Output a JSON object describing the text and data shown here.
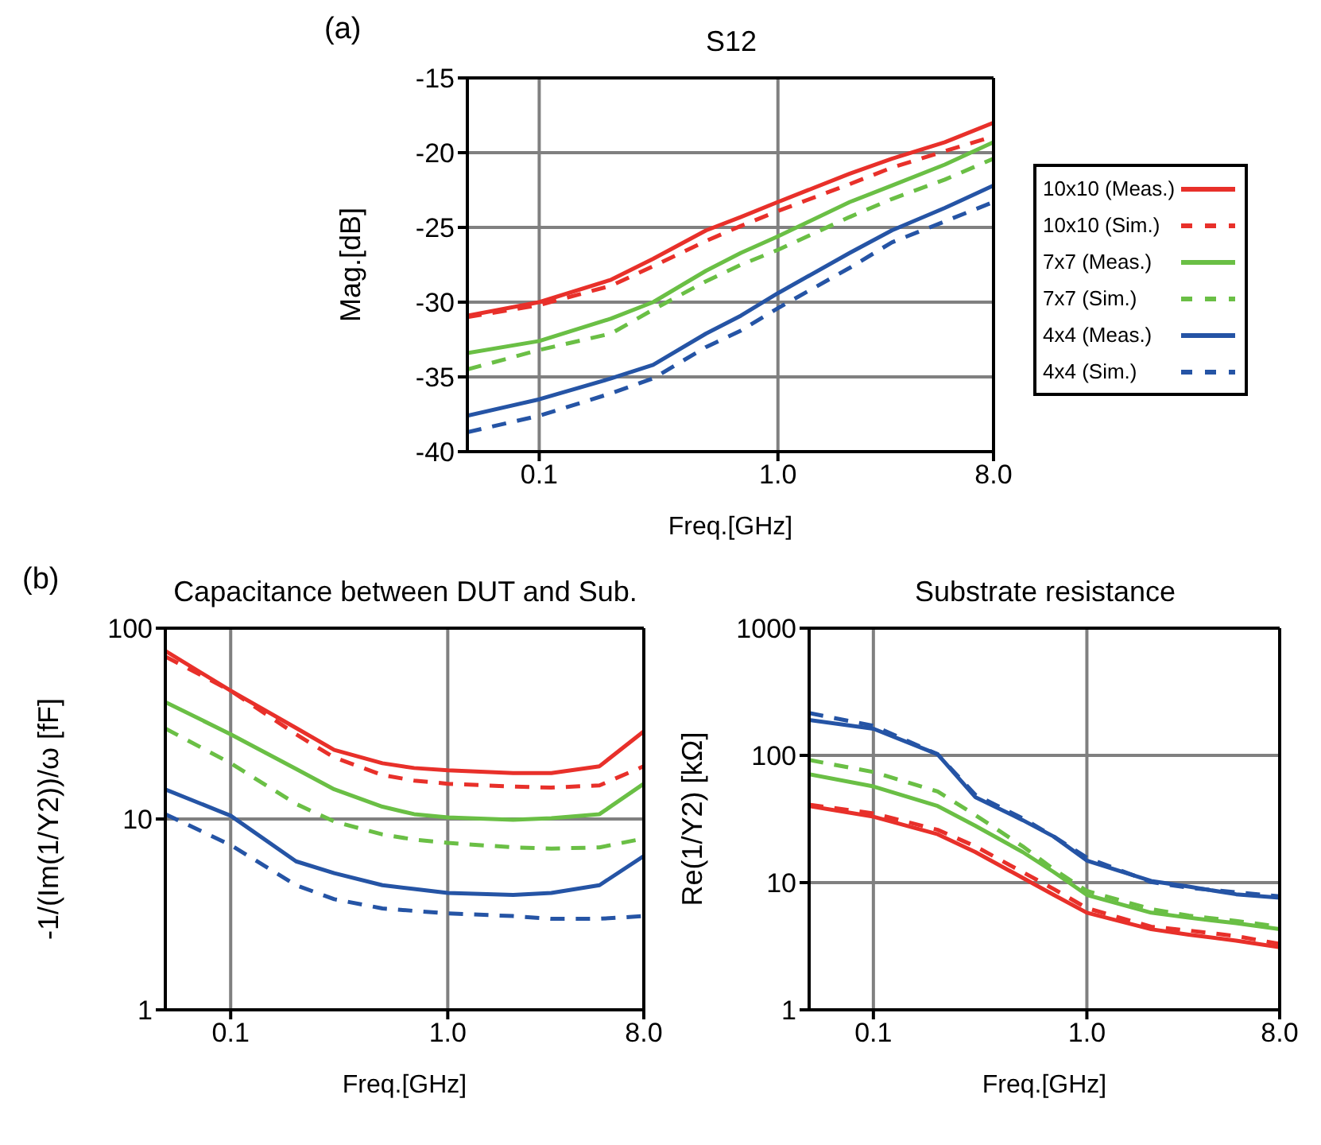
{
  "chart_data": [
    {
      "type": "line",
      "title": "S12",
      "xlabel": "Freq.[GHz]",
      "ylabel": "Mag.[dB]",
      "annotations": [
        "(a)"
      ],
      "log": "x",
      "grid": true,
      "legend": "right",
      "xlim": [
        0.05,
        8
      ],
      "xticks": [
        {
          "value": 0.1,
          "label": "0.1"
        },
        {
          "value": 1,
          "label": "1.0"
        },
        {
          "value": 8,
          "label": "8.0"
        }
      ],
      "ylim": [
        -40,
        -15
      ],
      "yticks": [
        -40,
        -35,
        -30,
        -25,
        -20,
        -15
      ],
      "x": [
        0.05,
        0.1,
        0.2,
        0.3,
        0.5,
        0.7,
        1,
        2,
        3,
        5,
        8
      ],
      "series": [
        {
          "name": "10x10 (Meas.)",
          "color": "#e8302a",
          "line_style": "solid",
          "values": [
            -30.9,
            -30.0,
            -28.5,
            -27.1,
            -25.2,
            -24.3,
            -23.3,
            -21.4,
            -20.4,
            -19.3,
            -18.0
          ]
        },
        {
          "name": "10x10 (Sim.)",
          "color": "#e8302a",
          "line_style": "dashed",
          "values": [
            -31.0,
            -30.2,
            -28.9,
            -27.6,
            -25.9,
            -24.9,
            -23.9,
            -22.1,
            -21.0,
            -19.9,
            -18.9
          ]
        },
        {
          "name": "7x7 (Meas.)",
          "color": "#6abf45",
          "line_style": "solid",
          "values": [
            -33.4,
            -32.6,
            -31.1,
            -30.0,
            -27.9,
            -26.7,
            -25.6,
            -23.3,
            -22.2,
            -20.8,
            -19.3
          ]
        },
        {
          "name": "7x7 (Sim.)",
          "color": "#6abf45",
          "line_style": "dashed",
          "values": [
            -34.5,
            -33.2,
            -32.1,
            -30.5,
            -28.6,
            -27.5,
            -26.5,
            -24.3,
            -23.1,
            -21.8,
            -20.4
          ]
        },
        {
          "name": "4x4 (Meas.)",
          "color": "#2554a5",
          "line_style": "solid",
          "values": [
            -37.6,
            -36.5,
            -35.1,
            -34.2,
            -32.1,
            -30.9,
            -29.4,
            -26.7,
            -25.2,
            -23.7,
            -22.2
          ]
        },
        {
          "name": "4x4 (Sim.)",
          "color": "#2554a5",
          "line_style": "dashed",
          "values": [
            -38.7,
            -37.6,
            -36.1,
            -35.1,
            -33.0,
            -31.9,
            -30.4,
            -27.7,
            -26.0,
            -24.6,
            -23.3
          ]
        }
      ]
    },
    {
      "type": "line",
      "title": "Capacitance between DUT and Sub.",
      "xlabel": "Freq.[GHz]",
      "ylabel": "-1/(Im(1/Y2))/ω [fF]",
      "annotations": [
        "(b)"
      ],
      "log": "xy",
      "grid": true,
      "xlim": [
        0.05,
        8
      ],
      "xticks": [
        {
          "value": 0.1,
          "label": "0.1"
        },
        {
          "value": 1,
          "label": "1.0"
        },
        {
          "value": 8,
          "label": "8.0"
        }
      ],
      "ylim": [
        1,
        100
      ],
      "yticks": [
        1,
        10,
        100
      ],
      "x": [
        0.05,
        0.1,
        0.2,
        0.3,
        0.5,
        0.7,
        1,
        2,
        3,
        5,
        8
      ],
      "series": [
        {
          "color": "#e8302a",
          "line_style": "solid",
          "values": [
            76,
            47,
            30,
            23,
            19.6,
            18.5,
            18,
            17.4,
            17.4,
            18.9,
            28.8
          ]
        },
        {
          "color": "#e8302a",
          "line_style": "dashed",
          "values": [
            71,
            47,
            27.8,
            21,
            17,
            15.9,
            15.3,
            14.8,
            14.6,
            15,
            18.9
          ]
        },
        {
          "color": "#6abf45",
          "line_style": "solid",
          "values": [
            41,
            27.8,
            18.3,
            14.3,
            11.6,
            10.6,
            10.2,
            9.9,
            10.1,
            10.6,
            15.3
          ]
        },
        {
          "color": "#6abf45",
          "line_style": "dashed",
          "values": [
            29.8,
            19.6,
            12,
            9.7,
            8.3,
            7.8,
            7.5,
            7.1,
            7.0,
            7.1,
            7.9
          ]
        },
        {
          "color": "#2554a5",
          "line_style": "solid",
          "values": [
            14.3,
            10.4,
            6.0,
            5.2,
            4.5,
            4.3,
            4.1,
            4.0,
            4.1,
            4.5,
            6.4
          ]
        },
        {
          "color": "#2554a5",
          "line_style": "dashed",
          "values": [
            10.6,
            7.3,
            4.5,
            3.8,
            3.4,
            3.3,
            3.2,
            3.1,
            3.0,
            3.0,
            3.1
          ]
        }
      ]
    },
    {
      "type": "line",
      "title": "Substrate resistance",
      "xlabel": "Freq.[GHz]",
      "ylabel": "Re(1/Y2) [kΩ]",
      "log": "xy",
      "grid": true,
      "xlim": [
        0.05,
        8
      ],
      "xticks": [
        {
          "value": 0.1,
          "label": "0.1"
        },
        {
          "value": 1,
          "label": "1.0"
        },
        {
          "value": 8,
          "label": "8.0"
        }
      ],
      "ylim": [
        1,
        1000
      ],
      "yticks": [
        1,
        10,
        100,
        1000
      ],
      "x": [
        0.05,
        0.1,
        0.2,
        0.3,
        0.5,
        0.7,
        1,
        2,
        3,
        5,
        8
      ],
      "series": [
        {
          "color": "#e8302a",
          "line_style": "solid",
          "values": [
            40,
            33,
            24,
            17.4,
            10.9,
            8.0,
            5.8,
            4.3,
            3.9,
            3.5,
            3.1
          ]
        },
        {
          "color": "#e8302a",
          "line_style": "dashed",
          "values": [
            41,
            35,
            26,
            19.3,
            12.1,
            8.9,
            6.3,
            4.5,
            4.2,
            3.8,
            3.3
          ]
        },
        {
          "color": "#6abf45",
          "line_style": "solid",
          "values": [
            71,
            57,
            40,
            28,
            17.4,
            12.1,
            8.0,
            5.8,
            5.3,
            4.8,
            4.3
          ]
        },
        {
          "color": "#6abf45",
          "line_style": "dashed",
          "values": [
            92,
            74,
            52,
            34,
            19.3,
            12.7,
            8.6,
            6.2,
            5.5,
            5.0,
            4.5
          ]
        },
        {
          "color": "#2554a5",
          "line_style": "solid",
          "values": [
            190,
            162,
            102,
            47,
            31,
            23,
            14.9,
            10.3,
            9.3,
            8.1,
            7.6
          ]
        },
        {
          "color": "#2554a5",
          "line_style": "dashed",
          "values": [
            215,
            171,
            102,
            49,
            32,
            23,
            15.7,
            10.1,
            9.1,
            8.4,
            7.8
          ]
        }
      ]
    }
  ]
}
